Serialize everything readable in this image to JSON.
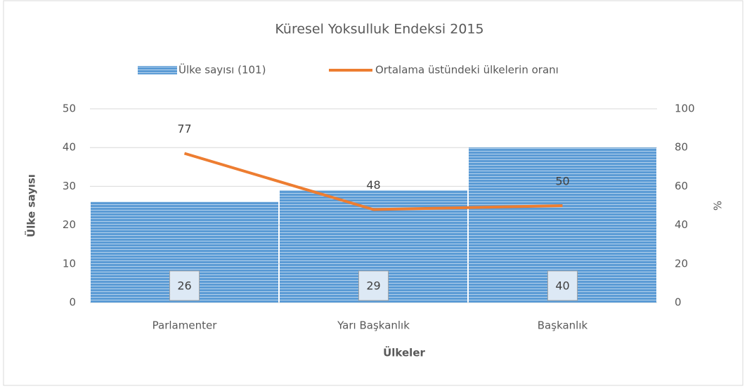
{
  "chart_data": {
    "type": "bar",
    "title": "Küresel Yoksulluk Endeksi 2015",
    "categories": [
      "Parlamenter",
      "Yarı Başkanlık",
      "Başkanlık"
    ],
    "series": [
      {
        "name": "Ülke sayısı (101)",
        "color": "#5b9bd5",
        "values": [
          26,
          29,
          40
        ]
      },
      {
        "name": "Ortalama üstündeki ülkelerin oranı",
        "color": "#ed7d31",
        "values": [
          77,
          48,
          50
        ],
        "type": "line",
        "axis": "y2"
      }
    ],
    "xlabel": "Ülkeler",
    "ylabel": "Ülke sayısı",
    "y2label": "%",
    "ylim": [
      0,
      50
    ],
    "yticks": [
      0,
      10,
      20,
      30,
      40,
      50
    ],
    "y2lim": [
      0,
      100
    ],
    "y2ticks": [
      0,
      20,
      40,
      60,
      80,
      100
    ],
    "grid": true,
    "legend": "top"
  }
}
